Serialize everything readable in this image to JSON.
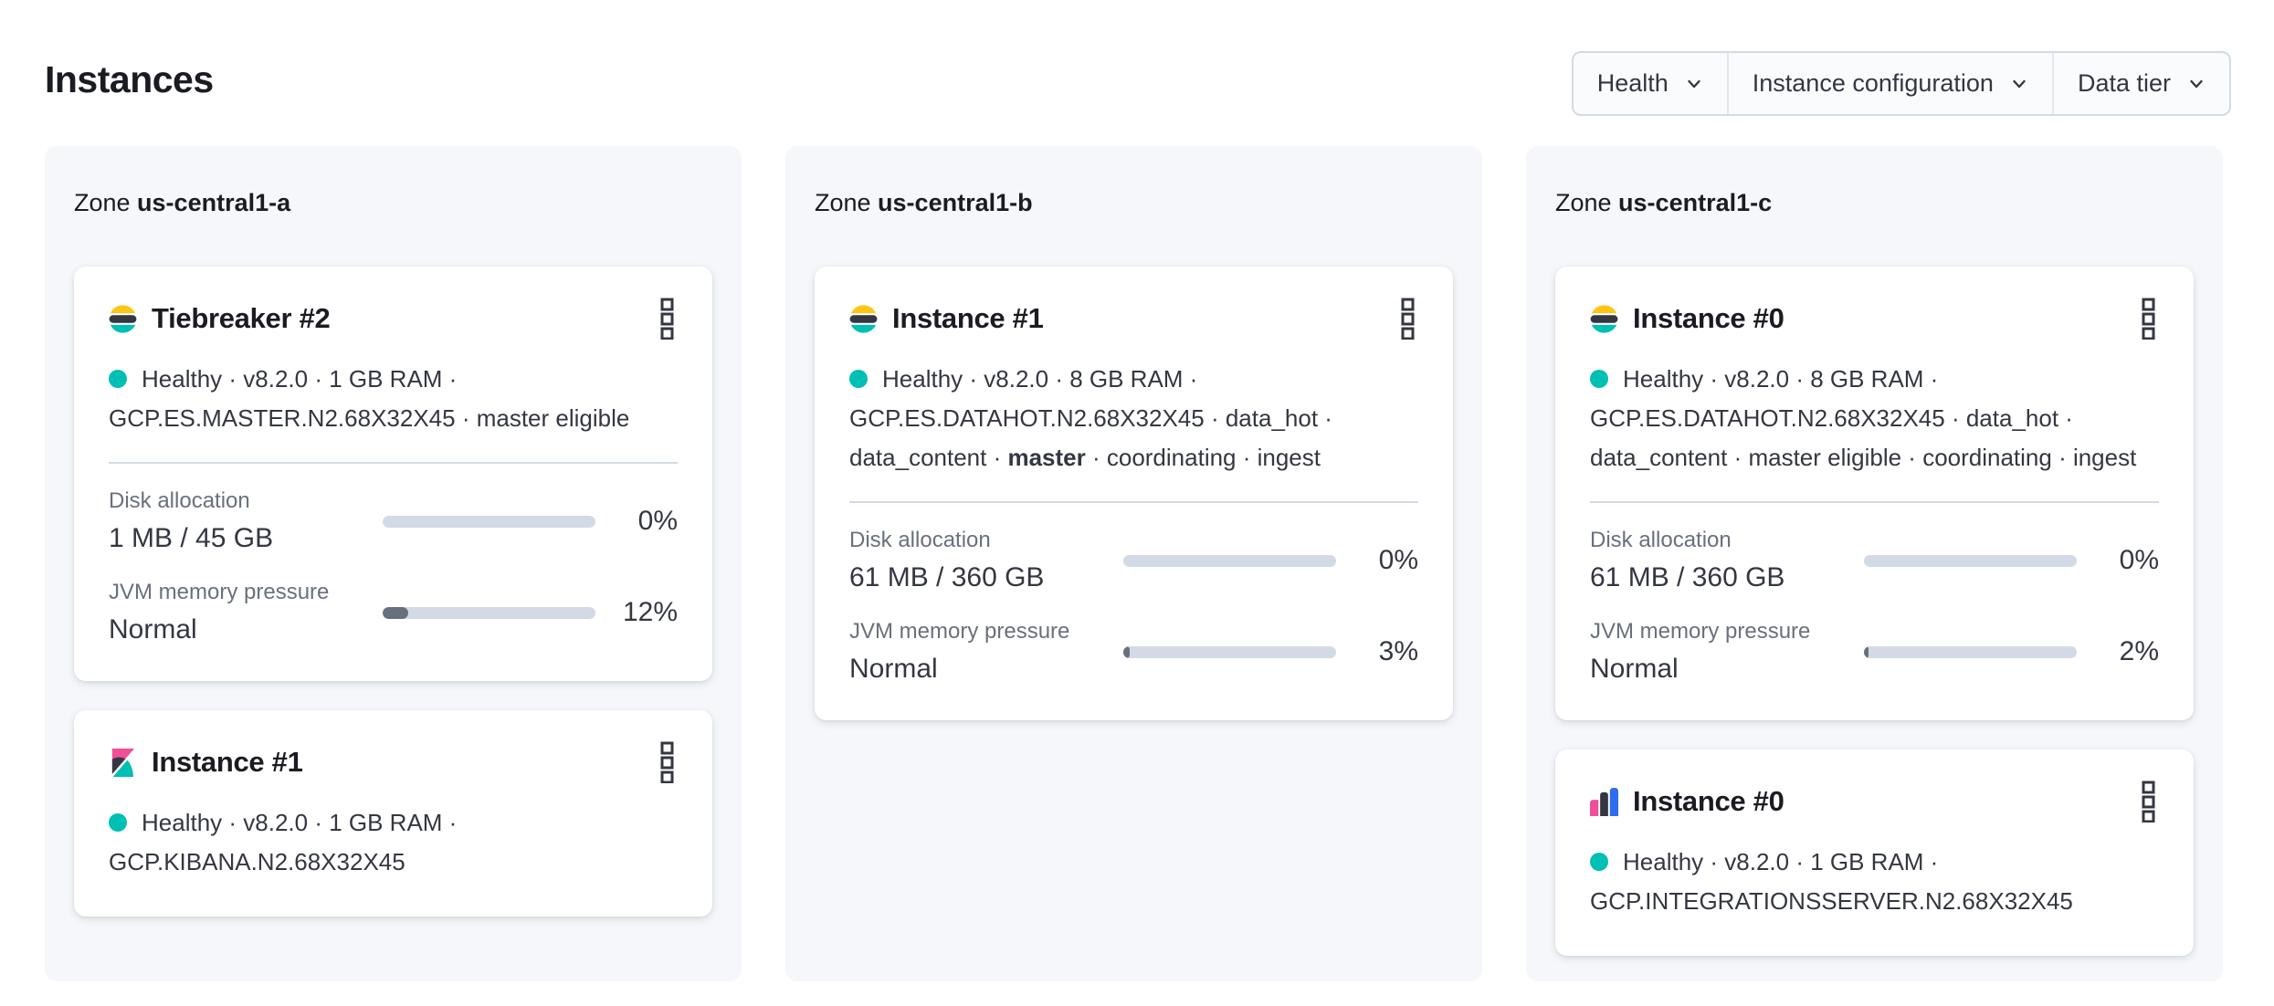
{
  "page": {
    "title": "Instances"
  },
  "filters": [
    {
      "label": "Health"
    },
    {
      "label": "Instance configuration"
    },
    {
      "label": "Data tier"
    }
  ],
  "colors": {
    "brand-yellow": "#FEC514",
    "brand-dark": "#343741",
    "brand-teal": "#00BFB3",
    "brand-pink": "#F04E98",
    "brand-blue": "#2F6DEF",
    "health": "#00BFB3",
    "track": "#D3DAE6",
    "fill": "#69707D",
    "text": "#343741",
    "text-subdued": "#69707D",
    "heading": "#1A1C21",
    "panel": "#F5F7FA",
    "border": "#D3DAE6"
  },
  "zones": [
    {
      "label_prefix": "Zone",
      "name": "us-central1-a",
      "cards": [
        {
          "product": "elasticsearch",
          "icon": "elasticsearch-logo-icon",
          "title": "Tiebreaker #2",
          "meta_lines": [
            {
              "dot": true,
              "segments": [
                {
                  "text": "Healthy · v8.2.0 · 1 GB RAM ·"
                }
              ]
            },
            {
              "dot": false,
              "segments": [
                {
                  "text": "GCP.ES.MASTER.N2.68X32X45 · master eligible"
                }
              ]
            }
          ],
          "metrics": [
            {
              "label": "Disk allocation",
              "value": "1 MB / 45 GB",
              "percent": 0,
              "percent_label": "0%"
            },
            {
              "label": "JVM memory pressure",
              "value": "Normal",
              "percent": 12,
              "percent_label": "12%"
            }
          ]
        },
        {
          "product": "kibana",
          "icon": "kibana-logo-icon",
          "title": "Instance #1",
          "meta_lines": [
            {
              "dot": true,
              "segments": [
                {
                  "text": "Healthy · v8.2.0 · 1 GB RAM ·"
                }
              ]
            },
            {
              "dot": false,
              "segments": [
                {
                  "text": "GCP.KIBANA.N2.68X32X45"
                }
              ]
            }
          ],
          "metrics": []
        }
      ]
    },
    {
      "label_prefix": "Zone",
      "name": "us-central1-b",
      "cards": [
        {
          "product": "elasticsearch",
          "icon": "elasticsearch-logo-icon",
          "title": "Instance #1",
          "meta_lines": [
            {
              "dot": true,
              "segments": [
                {
                  "text": "Healthy · v8.2.0 · 8 GB RAM ·"
                }
              ]
            },
            {
              "dot": false,
              "segments": [
                {
                  "text": "GCP.ES.DATAHOT.N2.68X32X45 · data_hot ·"
                }
              ]
            },
            {
              "dot": false,
              "segments": [
                {
                  "text": "data_content · "
                },
                {
                  "text": "master",
                  "bold": true
                },
                {
                  "text": " · coordinating · ingest"
                }
              ]
            }
          ],
          "metrics": [
            {
              "label": "Disk allocation",
              "value": "61 MB / 360 GB",
              "percent": 0,
              "percent_label": "0%"
            },
            {
              "label": "JVM memory pressure",
              "value": "Normal",
              "percent": 3,
              "percent_label": "3%"
            }
          ]
        }
      ]
    },
    {
      "label_prefix": "Zone",
      "name": "us-central1-c",
      "cards": [
        {
          "product": "elasticsearch",
          "icon": "elasticsearch-logo-icon",
          "title": "Instance #0",
          "meta_lines": [
            {
              "dot": true,
              "segments": [
                {
                  "text": "Healthy · v8.2.0 · 8 GB RAM ·"
                }
              ]
            },
            {
              "dot": false,
              "segments": [
                {
                  "text": "GCP.ES.DATAHOT.N2.68X32X45 · data_hot ·"
                }
              ]
            },
            {
              "dot": false,
              "segments": [
                {
                  "text": "data_content · master eligible · coordinating · ingest"
                }
              ]
            }
          ],
          "metrics": [
            {
              "label": "Disk allocation",
              "value": "61 MB / 360 GB",
              "percent": 0,
              "percent_label": "0%"
            },
            {
              "label": "JVM memory pressure",
              "value": "Normal",
              "percent": 2,
              "percent_label": "2%"
            }
          ]
        },
        {
          "product": "integrations",
          "icon": "integrations-server-logo-icon",
          "title": "Instance #0",
          "meta_lines": [
            {
              "dot": true,
              "segments": [
                {
                  "text": "Healthy · v8.2.0 · 1 GB RAM ·"
                }
              ]
            },
            {
              "dot": false,
              "segments": [
                {
                  "text": "GCP.INTEGRATIONSSERVER.N2.68X32X45"
                }
              ]
            }
          ],
          "metrics": []
        }
      ]
    }
  ]
}
